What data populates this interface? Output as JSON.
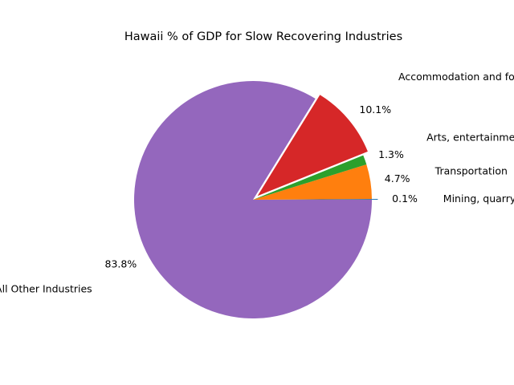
{
  "chart_data": {
    "type": "pie",
    "title": "Hawaii % of GDP for Slow Recovering Industries",
    "start_angle_deg": 0,
    "direction": "counterclockwise",
    "slices": [
      {
        "label": "Mining, quarrying",
        "value": 0.1,
        "pct_label": "0.1%",
        "color": "#1f77b4",
        "exploded": true
      },
      {
        "label": "Transportation",
        "value": 4.7,
        "pct_label": "4.7%",
        "color": "#ff7f0e",
        "exploded": false
      },
      {
        "label": "Arts, entertainment",
        "value": 1.3,
        "pct_label": "1.3%",
        "color": "#2ca02c",
        "exploded": false
      },
      {
        "label": "Accommodation and food services",
        "value": 10.1,
        "pct_label": "10.1%",
        "color": "#d62728",
        "exploded": true
      },
      {
        "label": "All Other Industries",
        "value": 83.8,
        "pct_label": "83.8%",
        "color": "#9467bd",
        "exploded": false
      }
    ]
  }
}
